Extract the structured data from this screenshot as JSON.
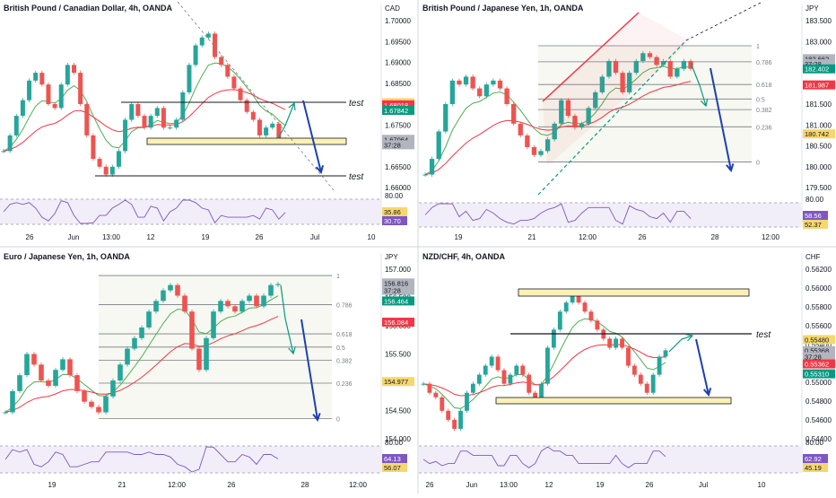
{
  "colors": {
    "up": "#26a69a",
    "down": "#ef5350",
    "green": "#089981",
    "red": "#f23645",
    "blue": "#1e40af",
    "yellow": "#f5d76e",
    "zone": "#fbf1b4",
    "rsi": "#7e57c2"
  },
  "chart_data": [
    {
      "type": "candlestick",
      "title": "British Pound / Canadian Dollar, 4h, OANDA",
      "unit": "CAD",
      "yticks": [
        "1.70000",
        "1.69500",
        "1.69000",
        "1.68500",
        "1.68000",
        "1.67500",
        "1.67000",
        "1.66500",
        "1.66000"
      ],
      "ylim": [
        1.658,
        1.702
      ],
      "xticks": [
        "26",
        "Jun",
        "13:00",
        "12",
        "19",
        "26",
        "Jul",
        "10"
      ],
      "rsi_ticks": [
        "80.00"
      ],
      "price_tags": [
        {
          "label": "1.68037",
          "bg": "#f5d76e",
          "fg": "#131722",
          "y": 1.68037
        },
        {
          "label": "1.68018",
          "bg": "#f23645",
          "fg": "#ffffff",
          "y": 1.6798
        },
        {
          "label": "1.67842",
          "bg": "#089981",
          "fg": "#ffffff",
          "y": 1.6784
        },
        {
          "label": "1.67064",
          "bg": "#b2b5be",
          "fg": "#131722",
          "y": 1.671
        },
        {
          "label": "37:28",
          "bg": "#b2b5be",
          "fg": "#131722",
          "y": 1.6696
        }
      ],
      "rsi_tags": [
        {
          "label": "35.86",
          "bg": "#f5d76e",
          "fg": "#131722"
        },
        {
          "label": "30.70",
          "bg": "#7e57c2",
          "fg": "#ffffff"
        }
      ],
      "annotations": [
        "test",
        "test"
      ],
      "closes": [
        1.668,
        1.672,
        1.677,
        1.681,
        1.686,
        1.688,
        1.685,
        1.68,
        1.679,
        1.685,
        1.69,
        1.688,
        1.68,
        1.672,
        1.666,
        1.664,
        1.662,
        1.664,
        1.668,
        1.676,
        1.68,
        1.677,
        1.674,
        1.677,
        1.679,
        1.674,
        1.674,
        1.676,
        1.683,
        1.69,
        1.695,
        1.697,
        1.698,
        1.692,
        1.69,
        1.687,
        1.684,
        1.681,
        1.678,
        1.676,
        1.672,
        1.674,
        1.675,
        1.671,
        1.6706
      ]
    },
    {
      "type": "candlestick",
      "title": "British Pound / Japanese Yen, 1h, OANDA",
      "unit": "JPY",
      "yticks": [
        "183.500",
        "183.000",
        "182.500",
        "182.000",
        "181.500",
        "181.000",
        "180.500",
        "180.000",
        "179.500"
      ],
      "ylim": [
        179.3,
        183.7
      ],
      "xticks": [
        "19",
        "21",
        "12:00",
        "26",
        "28",
        "12:00"
      ],
      "rsi_ticks": [
        "80.00"
      ],
      "price_tags": [
        {
          "label": "182.662",
          "bg": "#b2b5be",
          "fg": "#131722",
          "y": 182.66
        },
        {
          "label": "37:28",
          "bg": "#b2b5be",
          "fg": "#131722",
          "y": 182.53
        },
        {
          "label": "182.402",
          "bg": "#089981",
          "fg": "#ffffff",
          "y": 182.4
        },
        {
          "label": "181.987",
          "bg": "#f23645",
          "fg": "#ffffff",
          "y": 181.99
        },
        {
          "label": "180.742",
          "bg": "#f5d76e",
          "fg": "#131722",
          "y": 180.74
        }
      ],
      "rsi_tags": [
        {
          "label": "58.56",
          "bg": "#7e57c2",
          "fg": "#ffffff"
        },
        {
          "label": "52.37",
          "bg": "#f5d76e",
          "fg": "#131722"
        }
      ],
      "fib_levels": [
        {
          "label": "1",
          "value": 182.99
        },
        {
          "label": "0.786",
          "value": 182.58
        },
        {
          "label": "0.618",
          "value": 182.0
        },
        {
          "label": "0.5",
          "value": 181.63
        },
        {
          "label": "0.382",
          "value": 181.36
        },
        {
          "label": "0.236",
          "value": 180.92
        },
        {
          "label": "0",
          "value": 180.02
        }
      ],
      "closes": [
        179.7,
        180.1,
        180.8,
        181.5,
        182.1,
        182.0,
        182.2,
        181.9,
        181.7,
        182.0,
        182.1,
        181.9,
        181.5,
        181.0,
        180.7,
        180.4,
        180.2,
        180.3,
        180.6,
        181.0,
        181.6,
        181.2,
        180.9,
        181.0,
        181.4,
        181.8,
        182.2,
        182.6,
        182.3,
        181.8,
        182.3,
        182.6,
        182.8,
        182.7,
        182.5,
        182.6,
        182.2,
        182.4,
        182.6,
        182.4
      ]
    },
    {
      "type": "candlestick",
      "title": "Euro / Japanese Yen, 1h, OANDA",
      "unit": "JPY",
      "yticks": [
        "157.000",
        "156.500",
        "156.000",
        "155.500",
        "155.000",
        "154.500",
        "154.000"
      ],
      "ylim": [
        153.85,
        157.15
      ],
      "xticks": [
        "19",
        "21",
        "12:00",
        "26",
        "28",
        "12:00"
      ],
      "rsi_ticks": [
        "80.00"
      ],
      "price_tags": [
        {
          "label": "156.816",
          "bg": "#b2b5be",
          "fg": "#131722",
          "y": 156.84
        },
        {
          "label": "37:28",
          "bg": "#b2b5be",
          "fg": "#131722",
          "y": 156.7
        },
        {
          "label": "156.464",
          "bg": "#089981",
          "fg": "#ffffff",
          "y": 156.5
        },
        {
          "label": "156.084",
          "bg": "#f23645",
          "fg": "#ffffff",
          "y": 156.1
        },
        {
          "label": "154.977",
          "bg": "#f5d76e",
          "fg": "#131722",
          "y": 154.98
        }
      ],
      "rsi_tags": [
        {
          "label": "64.13",
          "bg": "#7e57c2",
          "fg": "#ffffff"
        },
        {
          "label": "56.07",
          "bg": "#f5d76e",
          "fg": "#131722"
        }
      ],
      "fib_levels": [
        {
          "label": "1",
          "value": 156.98
        },
        {
          "label": "0.786",
          "value": 156.43
        },
        {
          "label": "0.618",
          "value": 155.88
        },
        {
          "label": "0.5",
          "value": 155.63
        },
        {
          "label": "0.382",
          "value": 155.38
        },
        {
          "label": "0.236",
          "value": 154.95
        },
        {
          "label": "0",
          "value": 154.28
        }
      ],
      "closes": [
        154.4,
        154.8,
        155.1,
        155.5,
        155.3,
        155.0,
        154.9,
        155.2,
        155.4,
        155.1,
        154.8,
        154.6,
        154.5,
        154.4,
        154.7,
        155.0,
        155.3,
        155.6,
        155.8,
        156.0,
        156.3,
        156.5,
        156.7,
        156.8,
        156.6,
        156.3,
        155.6,
        155.2,
        155.8,
        156.3,
        156.5,
        156.4,
        156.3,
        156.5,
        156.6,
        156.4,
        156.6,
        156.8,
        156.82
      ]
    },
    {
      "type": "candlestick",
      "title": "NZD/CHF, 4h, OANDA",
      "unit": "CHF",
      "yticks": [
        "0.56200",
        "0.56000",
        "0.55800",
        "0.55600",
        "0.55400",
        "0.55200",
        "0.55000",
        "0.54800",
        "0.54600",
        "0.54400"
      ],
      "ylim": [
        0.5436,
        0.563
      ],
      "xticks": [
        "26",
        "Jun",
        "13:00",
        "12",
        "19",
        "26",
        "Jul",
        "10"
      ],
      "rsi_ticks": [
        "80.00"
      ],
      "price_tags": [
        {
          "label": "0.55480",
          "bg": "#f5d76e",
          "fg": "#131722",
          "y": 0.5549
        },
        {
          "label": "0.55368",
          "bg": "#b2b5be",
          "fg": "#131722",
          "y": 0.55368
        },
        {
          "label": "37:28",
          "bg": "#b2b5be",
          "fg": "#131722",
          "y": 0.553
        },
        {
          "label": "0.55362",
          "bg": "#f23645",
          "fg": "#ffffff",
          "y": 0.5522
        },
        {
          "label": "0.55310",
          "bg": "#089981",
          "fg": "#ffffff",
          "y": 0.5511
        }
      ],
      "rsi_tags": [
        {
          "label": "62.92",
          "bg": "#7e57c2",
          "fg": "#ffffff"
        },
        {
          "label": "45.19",
          "bg": "#f5d76e",
          "fg": "#131722"
        }
      ],
      "annotations": [
        "test"
      ],
      "closes": [
        0.55,
        0.549,
        0.5485,
        0.547,
        0.546,
        0.545,
        0.547,
        0.549,
        0.55,
        0.551,
        0.552,
        0.553,
        0.5515,
        0.55,
        0.551,
        0.552,
        0.551,
        0.549,
        0.548,
        0.55,
        0.554,
        0.556,
        0.558,
        0.559,
        0.56,
        0.559,
        0.558,
        0.557,
        0.556,
        0.555,
        0.554,
        0.555,
        0.554,
        0.552,
        0.551,
        0.55,
        0.549,
        0.551,
        0.553,
        0.5537
      ]
    }
  ]
}
